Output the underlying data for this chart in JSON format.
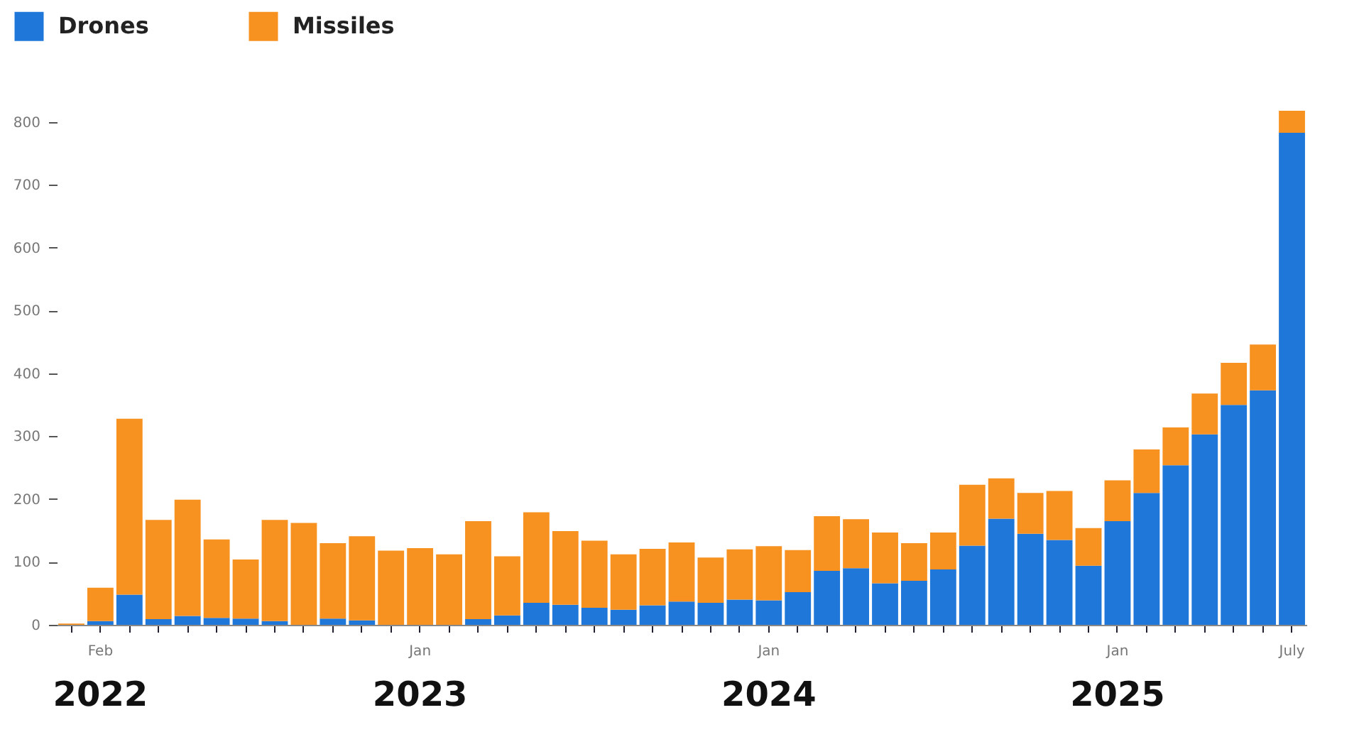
{
  "chart_data": {
    "type": "bar",
    "categories": [
      null,
      "Feb",
      null,
      null,
      null,
      null,
      null,
      null,
      null,
      null,
      null,
      null,
      "Jan",
      null,
      null,
      null,
      null,
      null,
      null,
      null,
      null,
      null,
      null,
      null,
      "Jan",
      null,
      null,
      null,
      null,
      null,
      null,
      null,
      null,
      null,
      null,
      null,
      "Jan",
      null,
      null,
      null,
      null,
      null,
      "July"
    ],
    "series": [
      {
        "name": "Drones",
        "color": "#1f78d9",
        "values": [
          0,
          6,
          48,
          9,
          14,
          11,
          10,
          6,
          0,
          10,
          7,
          0,
          0,
          0,
          9,
          15,
          35,
          32,
          27,
          24,
          31,
          37,
          35,
          40,
          39,
          52,
          86,
          90,
          66,
          70,
          88,
          126,
          169,
          145,
          135,
          94,
          165,
          210,
          254,
          303,
          350,
          373,
          783
        ]
      },
      {
        "name": "Missiles",
        "color": "#f7911f",
        "values": [
          2,
          53,
          280,
          158,
          185,
          125,
          94,
          161,
          162,
          120,
          134,
          118,
          122,
          112,
          156,
          94,
          144,
          117,
          107,
          88,
          90,
          94,
          72,
          80,
          86,
          67,
          87,
          78,
          81,
          60,
          59,
          97,
          64,
          65,
          78,
          60,
          65,
          69,
          60,
          65,
          67,
          73,
          35
        ]
      }
    ],
    "stacked": true,
    "ylim": [
      0,
      818
    ],
    "yticks": [
      0,
      100,
      200,
      300,
      400,
      500,
      600,
      700,
      800
    ],
    "legend": "top left",
    "annotations": [
      "2022",
      "2023",
      "2024",
      "2025"
    ]
  }
}
